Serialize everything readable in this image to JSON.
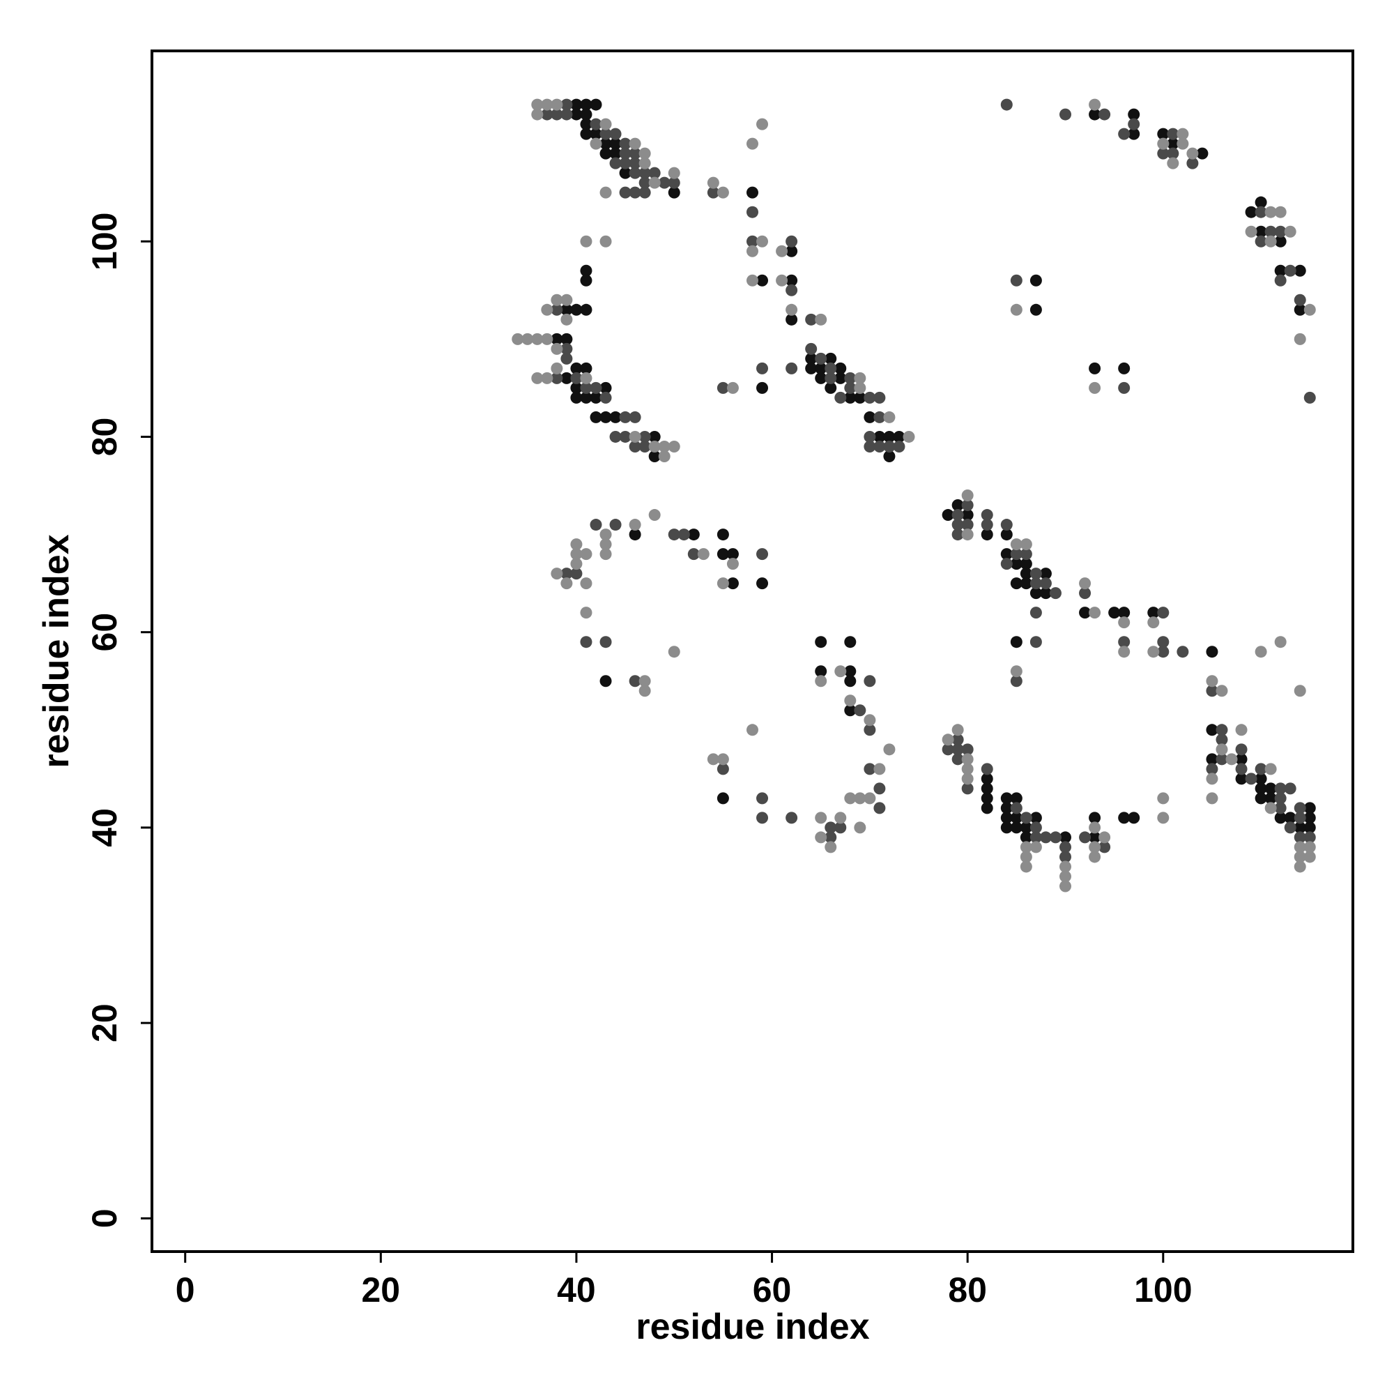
{
  "chart_data": {
    "type": "scatter",
    "xlabel": "residue index",
    "ylabel": "residue index",
    "xlim": [
      -3.4,
      119.4
    ],
    "ylim": [
      -3.4,
      119.5
    ],
    "xticks": [
      0,
      20,
      40,
      60,
      80,
      100
    ],
    "yticks": [
      0,
      20,
      40,
      60,
      80,
      100
    ],
    "series": [
      {
        "color": "#111111",
        "x": [
          40,
          41,
          42,
          40,
          41,
          41,
          41,
          42,
          43,
          44,
          43,
          44,
          45,
          50,
          58,
          62,
          59,
          62,
          62,
          41,
          41,
          39,
          40,
          41,
          38,
          39,
          40,
          41,
          39,
          40,
          43,
          40,
          41,
          42,
          42,
          43,
          44,
          48,
          48,
          64,
          66,
          64,
          65,
          67,
          65,
          67,
          66,
          68,
          69,
          70,
          71,
          72,
          73,
          72,
          59,
          46,
          43,
          52,
          55,
          55,
          56,
          56,
          59,
          65,
          68,
          65,
          68,
          68,
          68,
          55,
          78,
          79,
          80,
          82,
          84,
          84,
          85,
          86,
          85,
          86,
          86,
          87,
          88,
          88,
          85,
          92,
          95,
          96,
          99,
          105,
          82,
          82,
          82,
          82,
          84,
          85,
          84,
          84,
          85,
          84,
          85,
          86,
          87,
          86,
          90,
          93,
          93,
          96,
          97,
          105,
          105,
          108,
          108,
          110,
          110,
          111,
          111,
          110,
          112,
          113,
          115,
          114,
          115,
          115,
          93,
          97,
          97,
          100,
          101,
          104,
          109,
          110,
          110,
          112,
          112,
          114,
          114,
          87,
          87,
          93,
          96
        ],
        "y": [
          114,
          114,
          114,
          113,
          113,
          112,
          111,
          111,
          110,
          110,
          109,
          109,
          107,
          105,
          105,
          99,
          96,
          96,
          92,
          97,
          96,
          93,
          93,
          93,
          90,
          90,
          87,
          87,
          86,
          85,
          85,
          84,
          84,
          84,
          82,
          82,
          82,
          80,
          78,
          88,
          88,
          87,
          87,
          87,
          86,
          86,
          85,
          84,
          84,
          82,
          80,
          80,
          80,
          78,
          85,
          70,
          55,
          70,
          70,
          68,
          68,
          65,
          65,
          59,
          59,
          56,
          56,
          55,
          52,
          43,
          72,
          73,
          72,
          70,
          70,
          68,
          67,
          67,
          65,
          66,
          65,
          64,
          66,
          64,
          59,
          62,
          62,
          62,
          62,
          58,
          45,
          44,
          43,
          42,
          43,
          43,
          42,
          41,
          41,
          40,
          40,
          40,
          41,
          39,
          39,
          39,
          41,
          41,
          41,
          50,
          47,
          47,
          45,
          45,
          44,
          44,
          43,
          43,
          41,
          41,
          42,
          40,
          41,
          40,
          113,
          113,
          111,
          111,
          110,
          109,
          103,
          104,
          101,
          100,
          97,
          97,
          93,
          96,
          93,
          87,
          87
        ]
      },
      {
        "color": "#4a4a4a",
        "x": [
          39,
          37,
          38,
          39,
          42,
          43,
          44,
          45,
          45,
          46,
          44,
          45,
          46,
          46,
          47,
          48,
          47,
          49,
          50,
          45,
          46,
          47,
          54,
          58,
          58,
          62,
          62,
          38,
          39,
          38,
          40,
          41,
          42,
          43,
          45,
          46,
          44,
          45,
          47,
          46,
          47,
          39,
          64,
          64,
          65,
          66,
          68,
          66,
          68,
          70,
          71,
          67,
          71,
          70,
          70,
          71,
          72,
          73,
          55,
          59,
          62,
          42,
          44,
          39,
          40,
          41,
          43,
          46,
          50,
          51,
          52,
          59,
          70,
          69,
          70,
          55,
          59,
          59,
          62,
          70,
          71,
          71,
          66,
          66,
          67,
          79,
          80,
          79,
          80,
          79,
          82,
          82,
          84,
          84,
          85,
          86,
          87,
          87,
          88,
          89,
          87,
          87,
          85,
          92,
          96,
          100,
          100,
          100,
          102,
          79,
          79,
          78,
          80,
          79,
          80,
          82,
          85,
          86,
          87,
          87,
          88,
          89,
          90,
          90,
          92,
          94,
          106,
          106,
          106,
          108,
          105,
          108,
          109,
          110,
          112,
          112,
          113,
          112,
          114,
          113,
          114,
          114,
          115,
          105,
          84,
          90,
          94,
          97,
          96,
          101,
          100,
          101,
          103,
          110,
          111,
          112,
          110,
          113,
          112,
          114,
          115,
          85,
          96
        ],
        "y": [
          114,
          113,
          113,
          113,
          112,
          111,
          111,
          110,
          109,
          109,
          108,
          108,
          108,
          107,
          107,
          107,
          106,
          106,
          106,
          105,
          105,
          105,
          105,
          103,
          100,
          100,
          95,
          93,
          88,
          86,
          86,
          85,
          85,
          84,
          82,
          82,
          80,
          80,
          80,
          79,
          79,
          89,
          92,
          89,
          88,
          87,
          86,
          86,
          85,
          84,
          84,
          84,
          82,
          80,
          79,
          79,
          79,
          79,
          85,
          87,
          87,
          71,
          71,
          66,
          66,
          59,
          59,
          55,
          70,
          70,
          68,
          68,
          55,
          52,
          50,
          46,
          43,
          41,
          41,
          46,
          44,
          42,
          39,
          40,
          40,
          72,
          73,
          71,
          71,
          70,
          72,
          71,
          71,
          67,
          68,
          68,
          66,
          65,
          65,
          64,
          62,
          59,
          55,
          64,
          59,
          62,
          59,
          58,
          58,
          49,
          48,
          48,
          48,
          47,
          44,
          46,
          42,
          41,
          40,
          39,
          39,
          39,
          38,
          37,
          39,
          38,
          50,
          49,
          47,
          48,
          46,
          46,
          45,
          46,
          44,
          43,
          44,
          42,
          42,
          40,
          41,
          39,
          39,
          54,
          114,
          113,
          113,
          112,
          111,
          111,
          109,
          109,
          108,
          103,
          101,
          101,
          100,
          97,
          96,
          94,
          84,
          96,
          85
        ]
      },
      {
        "color": "#8c8c8c",
        "x": [
          36,
          37,
          38,
          36,
          43,
          42,
          46,
          47,
          47,
          50,
          48,
          43,
          54,
          55,
          58,
          59,
          59,
          58,
          61,
          58,
          61,
          62,
          41,
          43,
          38,
          39,
          37,
          39,
          34,
          35,
          36,
          37,
          38,
          38,
          36,
          37,
          41,
          46,
          48,
          49,
          50,
          49,
          65,
          69,
          69,
          72,
          74,
          56,
          46,
          48,
          43,
          40,
          43,
          40,
          41,
          43,
          40,
          38,
          39,
          41,
          41,
          47,
          47,
          50,
          53,
          56,
          55,
          67,
          65,
          68,
          70,
          58,
          54,
          55,
          72,
          71,
          68,
          69,
          70,
          65,
          67,
          65,
          66,
          69,
          80,
          80,
          85,
          86,
          85,
          92,
          93,
          96,
          96,
          99,
          99,
          110,
          112,
          78,
          79,
          80,
          80,
          80,
          86,
          87,
          86,
          86,
          90,
          90,
          90,
          93,
          94,
          93,
          93,
          100,
          100,
          106,
          107,
          108,
          105,
          105,
          111,
          111,
          114,
          115,
          114,
          115,
          114,
          114,
          105,
          106,
          93,
          100,
          101,
          102,
          102,
          103,
          111,
          112,
          109,
          113,
          111,
          115,
          114,
          85,
          93
        ],
        "y": [
          114,
          114,
          114,
          113,
          112,
          110,
          110,
          109,
          108,
          107,
          106,
          105,
          106,
          105,
          110,
          112,
          100,
          99,
          99,
          96,
          96,
          93,
          100,
          100,
          94,
          94,
          93,
          92,
          90,
          90,
          90,
          90,
          89,
          87,
          86,
          86,
          86,
          80,
          79,
          79,
          79,
          78,
          92,
          86,
          85,
          82,
          80,
          85,
          71,
          72,
          70,
          69,
          69,
          68,
          68,
          68,
          67,
          66,
          65,
          65,
          62,
          55,
          54,
          58,
          68,
          67,
          65,
          56,
          55,
          53,
          51,
          50,
          47,
          47,
          48,
          46,
          43,
          43,
          43,
          41,
          41,
          39,
          38,
          40,
          74,
          70,
          69,
          69,
          56,
          65,
          62,
          61,
          58,
          61,
          58,
          58,
          59,
          49,
          50,
          47,
          46,
          45,
          38,
          38,
          37,
          36,
          36,
          35,
          34,
          40,
          39,
          38,
          37,
          43,
          41,
          48,
          47,
          50,
          45,
          43,
          46,
          42,
          38,
          38,
          37,
          37,
          36,
          54,
          55,
          54,
          114,
          110,
          108,
          111,
          110,
          109,
          103,
          103,
          101,
          101,
          100,
          93,
          90,
          93,
          85
        ]
      }
    ]
  }
}
